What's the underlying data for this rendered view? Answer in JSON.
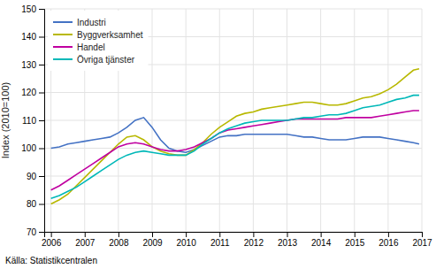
{
  "chart_data": {
    "type": "line",
    "ylabel": "Index (2010=100)",
    "source": "Källa: Statistikcentralen",
    "xlim": [
      2005.8,
      2017.0
    ],
    "xticks": [
      2006,
      2007,
      2008,
      2009,
      2010,
      2011,
      2012,
      2013,
      2014,
      2015,
      2016,
      2017
    ],
    "ylim": [
      70,
      150
    ],
    "yticks": [
      70,
      80,
      90,
      100,
      110,
      120,
      130,
      140,
      150
    ],
    "grid": true,
    "legend": "upper left",
    "x": [
      2006.0,
      2006.25,
      2006.5,
      2006.75,
      2007.0,
      2007.25,
      2007.5,
      2007.75,
      2008.0,
      2008.25,
      2008.5,
      2008.75,
      2009.0,
      2009.25,
      2009.5,
      2009.75,
      2010.0,
      2010.25,
      2010.5,
      2010.75,
      2011.0,
      2011.25,
      2011.5,
      2011.75,
      2012.0,
      2012.25,
      2012.5,
      2012.75,
      2013.0,
      2013.25,
      2013.5,
      2013.75,
      2014.0,
      2014.25,
      2014.5,
      2014.75,
      2015.0,
      2015.25,
      2015.5,
      2015.75,
      2016.0,
      2016.25,
      2016.5,
      2016.75,
      2016.92
    ],
    "series": [
      {
        "name": "Industri",
        "color": "#4472c4",
        "values": [
          100.0,
          100.5,
          101.5,
          102.0,
          102.5,
          103.0,
          103.5,
          104.0,
          105.5,
          107.5,
          110.0,
          111.0,
          107.5,
          103.0,
          100.0,
          99.0,
          98.5,
          99.5,
          101.0,
          102.5,
          104.0,
          104.5,
          104.5,
          105.0,
          105.0,
          105.0,
          105.0,
          105.0,
          105.0,
          104.5,
          104.0,
          104.0,
          103.5,
          103.0,
          103.0,
          103.0,
          103.5,
          104.0,
          104.0,
          104.0,
          103.5,
          103.0,
          102.5,
          102.0,
          101.5
        ]
      },
      {
        "name": "Byggverksamhet",
        "color": "#b8b800",
        "values": [
          80.0,
          81.5,
          83.5,
          86.5,
          89.5,
          92.5,
          95.5,
          98.5,
          101.5,
          104.0,
          104.5,
          103.0,
          100.5,
          99.0,
          98.0,
          97.5,
          97.5,
          99.5,
          102.0,
          105.0,
          107.5,
          109.5,
          111.5,
          112.5,
          113.0,
          114.0,
          114.5,
          115.0,
          115.5,
          116.0,
          116.5,
          116.5,
          116.0,
          115.5,
          115.5,
          116.0,
          117.0,
          118.0,
          118.5,
          119.5,
          121.0,
          123.0,
          125.5,
          128.0,
          128.5
        ]
      },
      {
        "name": "Handel",
        "color": "#c000a0",
        "values": [
          85.0,
          86.5,
          88.5,
          90.5,
          92.5,
          94.5,
          96.5,
          98.5,
          100.5,
          101.5,
          102.0,
          101.5,
          100.5,
          99.5,
          99.0,
          99.0,
          99.5,
          100.5,
          102.0,
          103.5,
          105.5,
          106.5,
          107.0,
          107.5,
          108.0,
          108.5,
          109.0,
          109.5,
          110.0,
          110.5,
          110.5,
          110.5,
          110.5,
          110.5,
          110.5,
          111.0,
          111.0,
          111.0,
          111.0,
          111.5,
          112.0,
          112.5,
          113.0,
          113.5,
          113.5
        ]
      },
      {
        "name": "Övriga tjänster",
        "color": "#00b8b8",
        "values": [
          82.0,
          83.0,
          84.5,
          86.0,
          88.0,
          90.0,
          92.0,
          94.0,
          96.0,
          97.5,
          98.5,
          99.0,
          98.5,
          98.0,
          97.5,
          97.5,
          97.5,
          99.0,
          101.5,
          103.5,
          105.5,
          107.0,
          108.0,
          109.0,
          109.5,
          110.0,
          110.0,
          110.0,
          110.0,
          110.5,
          111.0,
          111.0,
          111.5,
          112.0,
          112.0,
          112.5,
          113.5,
          114.5,
          115.0,
          115.5,
          116.5,
          117.5,
          118.0,
          119.0,
          119.0
        ]
      }
    ]
  }
}
